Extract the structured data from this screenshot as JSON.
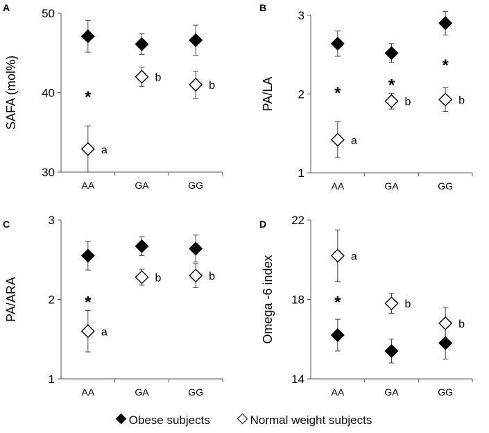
{
  "legend": {
    "obese_label": "Obese subjects",
    "normal_label": "Normal weight subjects"
  },
  "colors": {
    "obese": "#000000",
    "normal": "#ffffff",
    "stroke": "#000000"
  },
  "chart_data": [
    {
      "panel": "A",
      "type": "scatter",
      "ylabel": "SAFA (mol%)",
      "categories": [
        "AA",
        "GA",
        "GG"
      ],
      "ylim": [
        30,
        50
      ],
      "yticks": [
        "30",
        "40",
        "50"
      ],
      "series": [
        {
          "name": "Obese subjects",
          "values": [
            47.1,
            46.1,
            46.6
          ],
          "err": [
            2.0,
            1.3,
            1.9
          ]
        },
        {
          "name": "Normal weight subjects",
          "values": [
            32.9,
            42.0,
            41.0
          ],
          "err": [
            2.9,
            1.2,
            1.7
          ]
        }
      ],
      "annotations": [
        {
          "text": "*",
          "category": "AA",
          "y": 39.8
        },
        {
          "text": "a",
          "category": "AA",
          "series": 1
        },
        {
          "text": "b",
          "category": "GA",
          "series": 1
        },
        {
          "text": "b",
          "category": "GG",
          "series": 1
        }
      ]
    },
    {
      "panel": "B",
      "type": "scatter",
      "ylabel": "PA/LA",
      "categories": [
        "AA",
        "GA",
        "GG"
      ],
      "ylim": [
        1,
        3
      ],
      "yticks": [
        "1",
        "2",
        "3"
      ],
      "series": [
        {
          "name": "Obese subjects",
          "values": [
            2.64,
            2.52,
            2.9
          ],
          "err": [
            0.16,
            0.12,
            0.15
          ]
        },
        {
          "name": "Normal weight subjects",
          "values": [
            1.42,
            1.91,
            1.93
          ],
          "err": [
            0.23,
            0.1,
            0.15
          ]
        }
      ],
      "annotations": [
        {
          "text": "*",
          "category": "AA",
          "y": 2.05
        },
        {
          "text": "*",
          "category": "GA",
          "y": 2.15
        },
        {
          "text": "*",
          "category": "GG",
          "y": 2.4
        },
        {
          "text": "a",
          "category": "AA",
          "series": 1
        },
        {
          "text": "b",
          "category": "GA",
          "series": 1
        },
        {
          "text": "b",
          "category": "GG",
          "series": 1
        }
      ]
    },
    {
      "panel": "C",
      "type": "scatter",
      "ylabel": "PA/ARA",
      "categories": [
        "AA",
        "GA",
        "GG"
      ],
      "ylim": [
        1,
        3
      ],
      "yticks": [
        "1",
        "2",
        "3"
      ],
      "series": [
        {
          "name": "Obese subjects",
          "values": [
            2.55,
            2.67,
            2.64
          ],
          "err": [
            0.18,
            0.12,
            0.17
          ]
        },
        {
          "name": "Normal weight subjects",
          "values": [
            1.6,
            2.28,
            2.3
          ],
          "err": [
            0.26,
            0.1,
            0.15
          ]
        }
      ],
      "annotations": [
        {
          "text": "*",
          "category": "AA",
          "y": 2.0
        },
        {
          "text": "a",
          "category": "AA",
          "series": 1
        },
        {
          "text": "b",
          "category": "GA",
          "series": 1
        },
        {
          "text": "b",
          "category": "GG",
          "series": 1
        }
      ]
    },
    {
      "panel": "D",
      "type": "scatter",
      "ylabel": "Omega -6 index",
      "categories": [
        "AA",
        "GA",
        "GG"
      ],
      "ylim": [
        14,
        22
      ],
      "yticks": [
        "14",
        "18",
        "22"
      ],
      "series": [
        {
          "name": "Obese subjects",
          "values": [
            16.2,
            15.4,
            15.8
          ],
          "err": [
            0.8,
            0.6,
            0.8
          ]
        },
        {
          "name": "Normal weight subjects",
          "values": [
            20.2,
            17.8,
            16.8
          ],
          "err": [
            1.3,
            0.5,
            0.8
          ]
        }
      ],
      "annotations": [
        {
          "text": "*",
          "category": "AA",
          "y": 18.0
        },
        {
          "text": "a",
          "category": "AA",
          "series": 1
        },
        {
          "text": "b",
          "category": "GA",
          "series": 1
        },
        {
          "text": "b",
          "category": "GG",
          "series": 1
        }
      ]
    }
  ]
}
